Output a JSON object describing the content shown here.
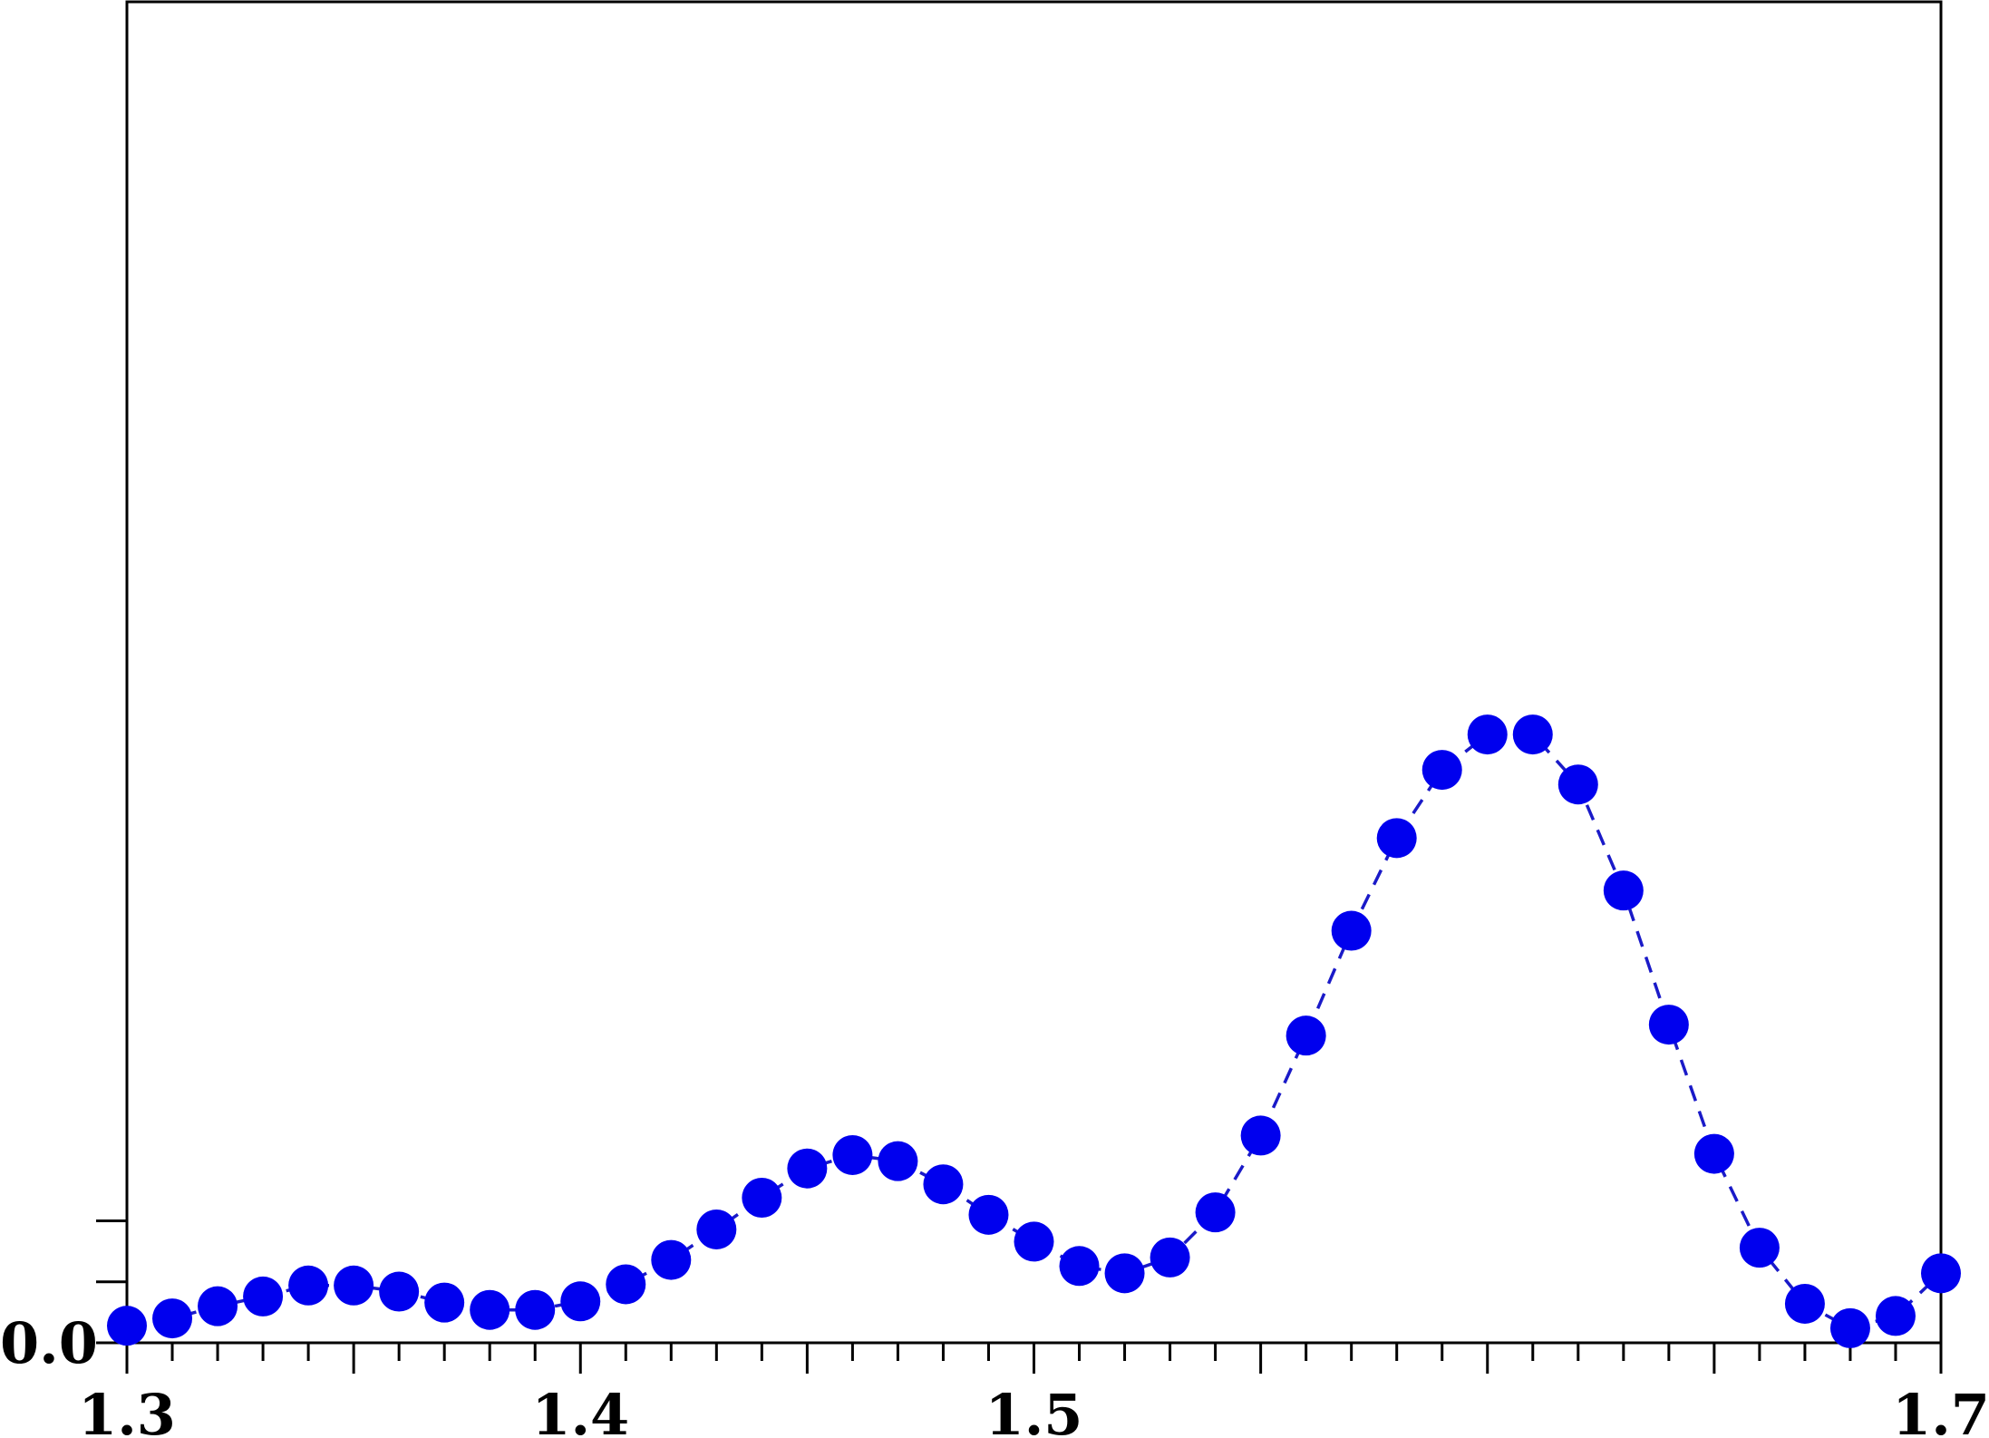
{
  "chart_data": {
    "type": "scatter",
    "title": "",
    "xlabel": "",
    "ylabel": "",
    "xlim": [
      1.3,
      1.7
    ],
    "ylim": [
      0.0,
      1.1
    ],
    "grid": false,
    "legend": "none",
    "x_ticks": [
      "1.3",
      "1.4",
      "1.5",
      "1.7"
    ],
    "y_ticks": [
      "0.0"
    ],
    "series": [
      {
        "color": "#0000ee",
        "line_style": "dashed",
        "marker": "circle",
        "x": [
          1.3,
          1.31,
          1.32,
          1.33,
          1.34,
          1.35,
          1.36,
          1.37,
          1.38,
          1.39,
          1.4,
          1.41,
          1.42,
          1.43,
          1.44,
          1.45,
          1.46,
          1.47,
          1.48,
          1.49,
          1.5,
          1.51,
          1.52,
          1.53,
          1.54,
          1.55,
          1.56,
          1.57,
          1.58,
          1.59,
          1.6,
          1.61,
          1.62,
          1.63,
          1.64,
          1.65,
          1.66,
          1.67,
          1.68,
          1.69,
          1.7
        ],
        "y": [
          0.014,
          0.02,
          0.03,
          0.038,
          0.047,
          0.047,
          0.042,
          0.033,
          0.027,
          0.027,
          0.034,
          0.048,
          0.068,
          0.093,
          0.119,
          0.143,
          0.154,
          0.149,
          0.13,
          0.105,
          0.083,
          0.063,
          0.057,
          0.07,
          0.107,
          0.17,
          0.252,
          0.338,
          0.414,
          0.47,
          0.499,
          0.499,
          0.458,
          0.371,
          0.261,
          0.155,
          0.078,
          0.032,
          0.012,
          0.022,
          0.057
        ]
      }
    ]
  }
}
